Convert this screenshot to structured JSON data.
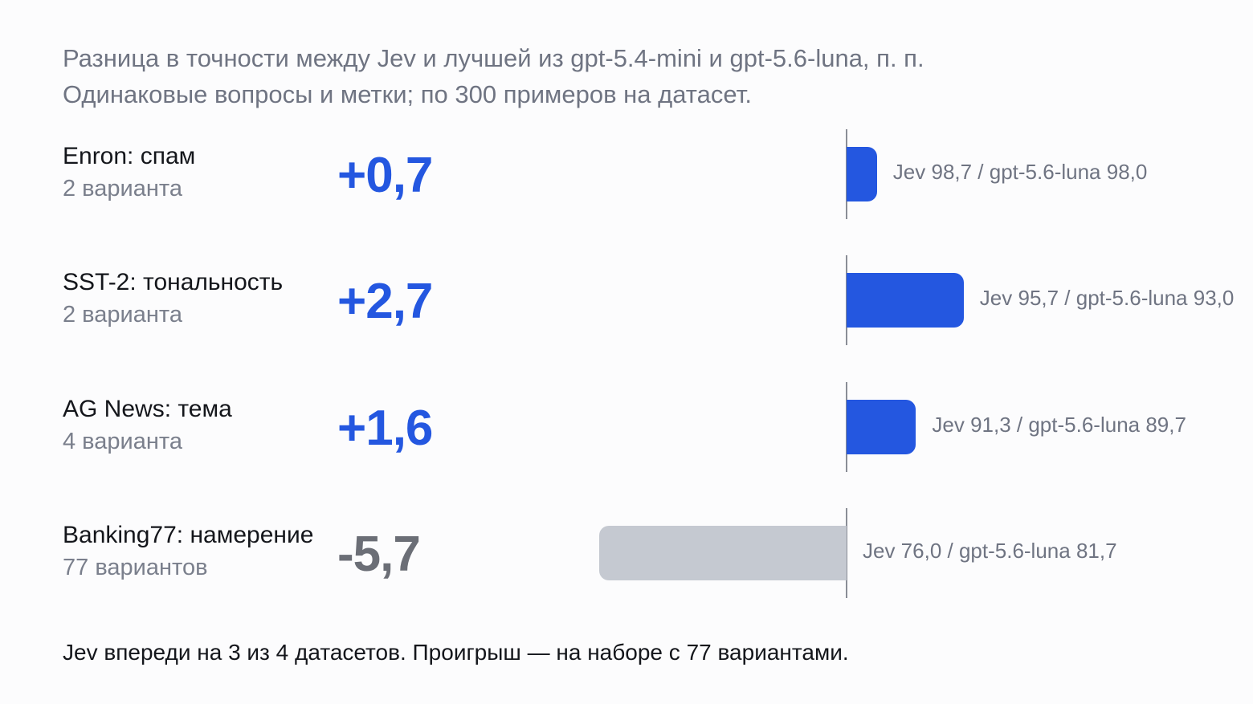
{
  "header": {
    "subtitle_line1": "Разница в точности между Jev и лучшей из gpt-5.4-mini и gpt-5.6-luna, п. п.",
    "subtitle_line2": "Одинаковые вопросы и метки; по 300 примеров на датасет."
  },
  "colors": {
    "positive": "#2457e0",
    "negative_bar": "#c5c9d1",
    "negative_text": "#6b6e76"
  },
  "chart_data": {
    "type": "bar",
    "orientation": "horizontal",
    "categories": [
      "Enron: спам",
      "SST-2: тональность",
      "AG News: тема",
      "Banking77: намерение"
    ],
    "values": [
      0.7,
      2.7,
      1.6,
      -5.7
    ],
    "rows": [
      {
        "name": "Enron: спам",
        "variants": "2 варианта",
        "delta": 0.7,
        "delta_label": "+0,7",
        "bar_label": "Jev 98,7 / gpt-5.6-luna 98,0"
      },
      {
        "name": "SST-2: тональность",
        "variants": "2 варианта",
        "delta": 2.7,
        "delta_label": "+2,7",
        "bar_label": "Jev 95,7 / gpt-5.6-luna 93,0"
      },
      {
        "name": "AG News: тема",
        "variants": "4 варианта",
        "delta": 1.6,
        "delta_label": "+1,6",
        "bar_label": "Jev 91,3 / gpt-5.6-luna 89,7"
      },
      {
        "name": "Banking77: намерение",
        "variants": "77 вариантов",
        "delta": -5.7,
        "delta_label": "-5,7",
        "bar_label": "Jev 76,0 / gpt-5.6-luna 81,7"
      }
    ],
    "grid": false,
    "legend": "none"
  },
  "footer": {
    "note": "Jev впереди на 3 из 4 датасетов. Проигрыш — на наборе с 77 вариантами."
  }
}
